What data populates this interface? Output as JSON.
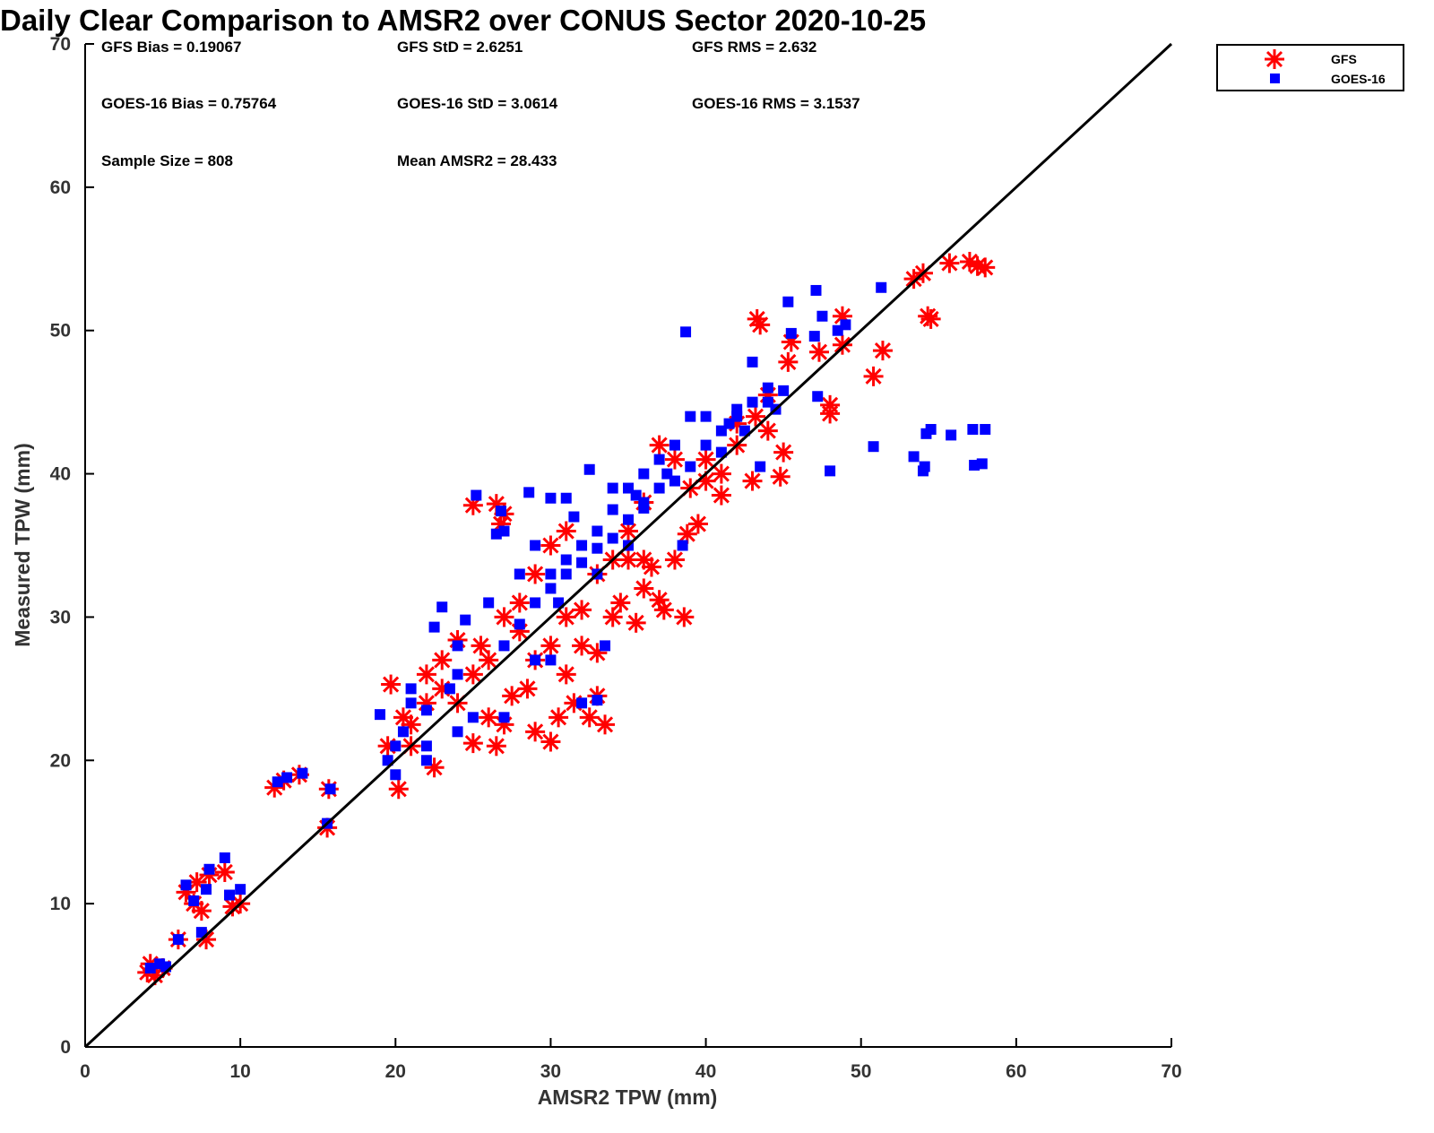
{
  "chart_data": {
    "type": "scatter",
    "title": "Daily Clear Comparison to AMSR2 over CONUS Sector 2020-10-25",
    "xlabel": "AMSR2 TPW (mm)",
    "ylabel": "Measured TPW (mm)",
    "xlim": [
      0,
      70
    ],
    "ylim": [
      0,
      70
    ],
    "xticks": [
      "0",
      "10",
      "20",
      "30",
      "40",
      "50",
      "60",
      "70"
    ],
    "yticks": [
      "0",
      "10",
      "20",
      "30",
      "40",
      "50",
      "60",
      "70"
    ],
    "grid": false,
    "legend_position": "outside-top-right",
    "reference_line": {
      "x": [
        0,
        70
      ],
      "y": [
        0,
        70
      ],
      "color": "#000000"
    },
    "stats": [
      [
        "GFS Bias = 0.19067",
        "GFS StD = 2.6251",
        "GFS RMS = 2.632"
      ],
      [
        "GOES-16 Bias = 0.75764",
        "GOES-16 StD = 3.0614",
        "GOES-16 RMS = 3.1537"
      ],
      [
        "Sample Size = 808",
        "Mean AMSR2 = 28.433"
      ]
    ],
    "series": [
      {
        "name": "GFS",
        "marker": "asterisk",
        "color": "#ff0000",
        "points": [
          [
            4,
            5.2
          ],
          [
            4.5,
            5
          ],
          [
            5,
            5.5
          ],
          [
            4.2,
            5.8
          ],
          [
            6.5,
            10.8
          ],
          [
            7,
            10
          ],
          [
            7.5,
            9.5
          ],
          [
            8,
            12
          ],
          [
            7.2,
            11.5
          ],
          [
            9,
            12.2
          ],
          [
            9.5,
            9.8
          ],
          [
            10,
            10
          ],
          [
            7.8,
            7.5
          ],
          [
            6,
            7.5
          ],
          [
            12.2,
            18.1
          ],
          [
            12.8,
            18.6
          ],
          [
            13.8,
            19
          ],
          [
            15.7,
            18
          ],
          [
            15.6,
            15.3
          ],
          [
            19.7,
            25.3
          ],
          [
            20.2,
            18
          ],
          [
            19.5,
            21
          ],
          [
            21,
            22.5
          ],
          [
            22,
            26
          ],
          [
            22.5,
            19.5
          ],
          [
            23,
            27
          ],
          [
            24,
            28.4
          ],
          [
            25,
            21.2
          ],
          [
            25.5,
            28
          ],
          [
            26,
            23
          ],
          [
            26.5,
            21
          ],
          [
            27,
            22.5
          ],
          [
            27.5,
            24.5
          ],
          [
            28,
            29
          ],
          [
            28.5,
            25
          ],
          [
            29,
            22
          ],
          [
            30,
            21.3
          ],
          [
            30.5,
            23
          ],
          [
            31,
            26
          ],
          [
            31.5,
            24
          ],
          [
            32,
            28
          ],
          [
            32.5,
            23
          ],
          [
            33,
            24.5
          ],
          [
            33.5,
            22.5
          ],
          [
            34,
            30
          ],
          [
            34.5,
            31
          ],
          [
            35,
            34
          ],
          [
            35.5,
            29.6
          ],
          [
            36,
            32
          ],
          [
            36.5,
            33.5
          ],
          [
            37,
            31.2
          ],
          [
            37.3,
            30.5
          ],
          [
            38,
            34
          ],
          [
            38.6,
            30
          ],
          [
            38.8,
            35.8
          ],
          [
            39.5,
            36.5
          ],
          [
            37,
            42
          ],
          [
            38,
            41
          ],
          [
            40,
            39.5
          ],
          [
            41,
            40
          ],
          [
            42,
            42
          ],
          [
            43,
            39.5
          ],
          [
            44,
            43
          ],
          [
            44.8,
            39.8
          ],
          [
            45,
            41.5
          ],
          [
            43.3,
            50.8
          ],
          [
            43.5,
            50.4
          ],
          [
            45.3,
            47.8
          ],
          [
            45.5,
            49.2
          ],
          [
            47.3,
            48.5
          ],
          [
            48,
            44.8
          ],
          [
            48,
            44.2
          ],
          [
            48.8,
            49
          ],
          [
            48.8,
            51
          ],
          [
            50.8,
            46.8
          ],
          [
            51.4,
            48.6
          ],
          [
            53.4,
            53.6
          ],
          [
            54,
            54
          ],
          [
            54.3,
            51
          ],
          [
            54.5,
            50.8
          ],
          [
            55.7,
            54.7
          ],
          [
            57,
            54.8
          ],
          [
            57.5,
            54.5
          ],
          [
            58,
            54.4
          ],
          [
            25,
            37.8
          ],
          [
            26.5,
            37.9
          ],
          [
            27,
            37.2
          ],
          [
            26.8,
            36.5
          ],
          [
            29,
            33
          ],
          [
            30,
            35
          ],
          [
            31,
            36
          ],
          [
            28,
            31
          ],
          [
            27,
            30
          ],
          [
            29,
            27
          ],
          [
            31,
            30
          ],
          [
            33,
            33
          ],
          [
            35,
            36
          ],
          [
            36,
            38
          ],
          [
            40,
            41
          ],
          [
            42,
            43.5
          ],
          [
            44,
            45.5
          ],
          [
            24,
            24
          ],
          [
            22,
            24
          ],
          [
            21,
            21
          ],
          [
            20.5,
            23
          ],
          [
            23,
            25
          ],
          [
            25,
            26
          ],
          [
            26,
            27
          ],
          [
            33,
            27.5
          ],
          [
            30,
            28
          ],
          [
            34,
            34
          ],
          [
            32,
            30.5
          ],
          [
            36,
            34
          ],
          [
            39,
            39
          ],
          [
            41,
            38.5
          ],
          [
            43.2,
            44
          ]
        ]
      },
      {
        "name": "GOES-16",
        "marker": "square",
        "color": "#0000ff",
        "points": [
          [
            4.2,
            5.5
          ],
          [
            4.8,
            5.8
          ],
          [
            5.2,
            5.6
          ],
          [
            6,
            7.5
          ],
          [
            6.5,
            11.3
          ],
          [
            7,
            10.2
          ],
          [
            7.5,
            8
          ],
          [
            7.8,
            11
          ],
          [
            8,
            12.4
          ],
          [
            9,
            13.2
          ],
          [
            9.3,
            10.6
          ],
          [
            10,
            11
          ],
          [
            12.4,
            18.5
          ],
          [
            13,
            18.8
          ],
          [
            14,
            19.1
          ],
          [
            15.6,
            15.6
          ],
          [
            15.8,
            18
          ],
          [
            19,
            23.2
          ],
          [
            20,
            19
          ],
          [
            20.5,
            22
          ],
          [
            21,
            25
          ],
          [
            22,
            21
          ],
          [
            22.5,
            29.3
          ],
          [
            23,
            30.7
          ],
          [
            24,
            28
          ],
          [
            24.5,
            29.8
          ],
          [
            25,
            23
          ],
          [
            25.2,
            38.5
          ],
          [
            26.5,
            35.8
          ],
          [
            26.8,
            37.4
          ],
          [
            27,
            36
          ],
          [
            28.6,
            38.7
          ],
          [
            29,
            27
          ],
          [
            30,
            38.3
          ],
          [
            30.5,
            31
          ],
          [
            31,
            38.3
          ],
          [
            31.5,
            37
          ],
          [
            32.5,
            40.3
          ],
          [
            33,
            33
          ],
          [
            33.5,
            28
          ],
          [
            34,
            39
          ],
          [
            35,
            35
          ],
          [
            35.5,
            38.5
          ],
          [
            36,
            37.6
          ],
          [
            37,
            41
          ],
          [
            37.5,
            40
          ],
          [
            38,
            42
          ],
          [
            38.5,
            35
          ],
          [
            38.7,
            49.9
          ],
          [
            39,
            44
          ],
          [
            40,
            44
          ],
          [
            41,
            41.5
          ],
          [
            41.5,
            43.5
          ],
          [
            42,
            44.5
          ],
          [
            42.5,
            43
          ],
          [
            43,
            47.8
          ],
          [
            43.5,
            40.5
          ],
          [
            44,
            46
          ],
          [
            44.5,
            44.5
          ],
          [
            45,
            45.8
          ],
          [
            45.3,
            52
          ],
          [
            45.5,
            49.8
          ],
          [
            47,
            49.6
          ],
          [
            47.1,
            52.8
          ],
          [
            47.2,
            45.4
          ],
          [
            47.5,
            51
          ],
          [
            48,
            40.2
          ],
          [
            48.5,
            50
          ],
          [
            49,
            50.4
          ],
          [
            50.8,
            41.9
          ],
          [
            51.3,
            53
          ],
          [
            53.4,
            41.2
          ],
          [
            54,
            40.2
          ],
          [
            54.1,
            40.5
          ],
          [
            54.2,
            42.8
          ],
          [
            54.5,
            43.1
          ],
          [
            55.8,
            42.7
          ],
          [
            57.2,
            43.1
          ],
          [
            57.3,
            40.6
          ],
          [
            57.8,
            40.7
          ],
          [
            58,
            43.1
          ],
          [
            23.5,
            25
          ],
          [
            26,
            31
          ],
          [
            28,
            33
          ],
          [
            29,
            35
          ],
          [
            30,
            33
          ],
          [
            31,
            34
          ],
          [
            32,
            35
          ],
          [
            33,
            36
          ],
          [
            34,
            37.5
          ],
          [
            35,
            39
          ],
          [
            36,
            40
          ],
          [
            24,
            26
          ],
          [
            21,
            24
          ],
          [
            20,
            21
          ],
          [
            19.5,
            20
          ],
          [
            22,
            23.5
          ],
          [
            27,
            28
          ],
          [
            28,
            29.5
          ],
          [
            29,
            31
          ],
          [
            30,
            32
          ],
          [
            31,
            33
          ],
          [
            32,
            33.8
          ],
          [
            33,
            34.8
          ],
          [
            34,
            35.5
          ],
          [
            35,
            36.8
          ],
          [
            36,
            38
          ],
          [
            37,
            39
          ],
          [
            38,
            39.5
          ],
          [
            39,
            40.5
          ],
          [
            40,
            42
          ],
          [
            41,
            43
          ],
          [
            42,
            44
          ],
          [
            43,
            45
          ],
          [
            44,
            45
          ],
          [
            30,
            27
          ],
          [
            32,
            24
          ],
          [
            33,
            24.2
          ],
          [
            27,
            23
          ],
          [
            24,
            22
          ],
          [
            22,
            20
          ]
        ]
      }
    ]
  },
  "legend": {
    "labels": [
      "GFS",
      "GOES-16"
    ]
  }
}
